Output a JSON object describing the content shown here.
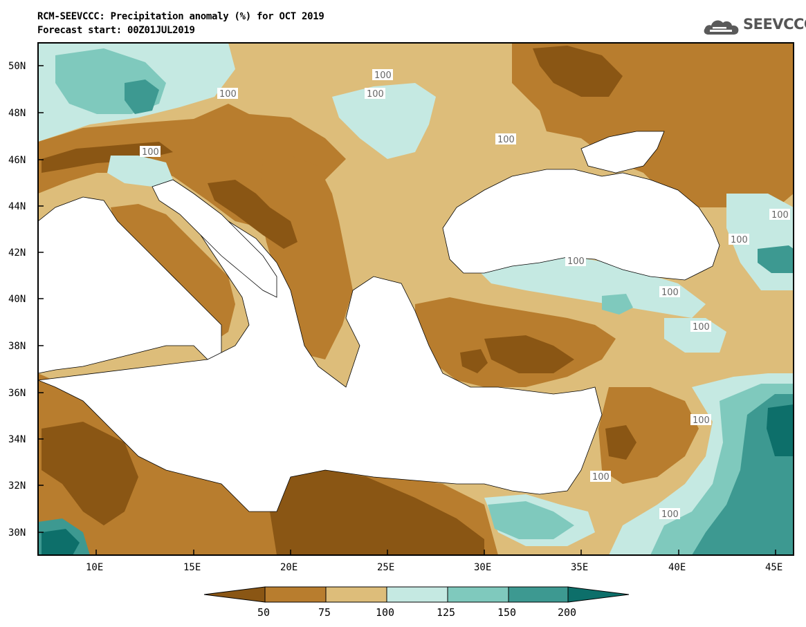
{
  "title": {
    "line1": "RCM-SEEVCCC: Precipitation anomaly (%) for OCT 2019",
    "line2": "Forecast start: 00Z01JUL2019"
  },
  "logo": {
    "text": "SEEVCCC",
    "icon": "cloud-icon"
  },
  "axes": {
    "lat_labels": [
      "50N",
      "48N",
      "46N",
      "44N",
      "42N",
      "40N",
      "38N",
      "36N",
      "34N",
      "32N",
      "30N"
    ],
    "lon_labels": [
      "10E",
      "15E",
      "20E",
      "25E",
      "30E",
      "35E",
      "40E",
      "45E"
    ]
  },
  "contour_labels": [
    "100",
    "100",
    "100",
    "100",
    "100",
    "100",
    "100",
    "100",
    "100",
    "100",
    "100",
    "100",
    "100"
  ],
  "colorbar": {
    "labels": [
      "50",
      "75",
      "100",
      "125",
      "150",
      "200"
    ],
    "colors": [
      "#8a5614",
      "#b87d2e",
      "#ddbd7a",
      "#c5e9e2",
      "#7fc9bd",
      "#3d9991",
      "#0d6f6a"
    ]
  },
  "colors": {
    "dry_strong": "#8a5614",
    "dry": "#b87d2e",
    "slightly_dry": "#ddbd7a",
    "slightly_wet": "#c5e9e2",
    "wet": "#7fc9bd",
    "very_wet": "#3d9991",
    "extreme_wet": "#0d6f6a",
    "sea": "#ffffff",
    "contour_100": "#a7b1b3"
  }
}
